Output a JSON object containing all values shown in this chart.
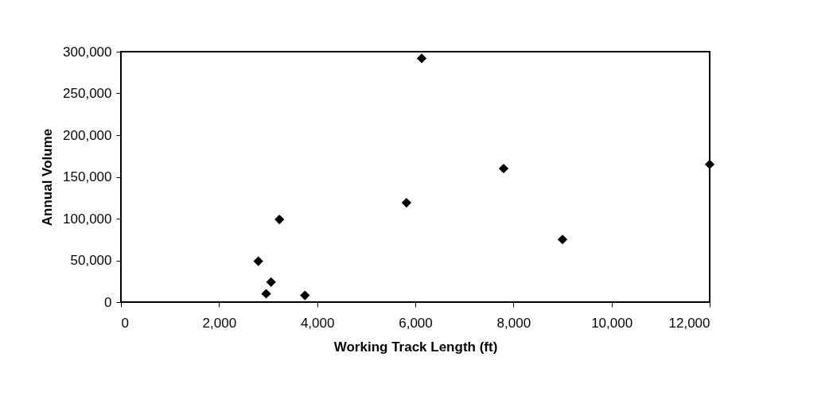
{
  "chart_data": {
    "type": "scatter",
    "xlabel": "Working  Track  Length  (ft)",
    "ylabel": "Annual  Volume",
    "x": [
      2800,
      2960,
      3060,
      3230,
      3750,
      5820,
      6130,
      7800,
      9000,
      12000
    ],
    "values": [
      49000,
      10000,
      24000,
      99000,
      8000,
      119000,
      292000,
      160000,
      75000,
      165000
    ],
    "color": "#000000",
    "marker": "diamond",
    "xlim": [
      0,
      12000
    ],
    "xticks": [
      0,
      {
        "value": 2000,
        "label": "2,000"
      },
      {
        "value": 4000,
        "label": "4,000"
      },
      {
        "value": 6000,
        "label": "6,000"
      },
      {
        "value": 8000,
        "label": "8,000"
      },
      {
        "value": 10000,
        "label": "10,000"
      },
      {
        "value": 12000,
        "label": "12,000"
      }
    ],
    "ylim": [
      0,
      300000
    ],
    "yticks": [
      0,
      {
        "value": 50000,
        "label": "50,000"
      },
      {
        "value": 100000,
        "label": "100,000"
      },
      {
        "value": 150000,
        "label": "150,000"
      },
      {
        "value": 200000,
        "label": "200,000"
      },
      {
        "value": 250000,
        "label": "250,000"
      },
      {
        "value": 300000,
        "label": "300,000"
      }
    ],
    "grid": false
  }
}
